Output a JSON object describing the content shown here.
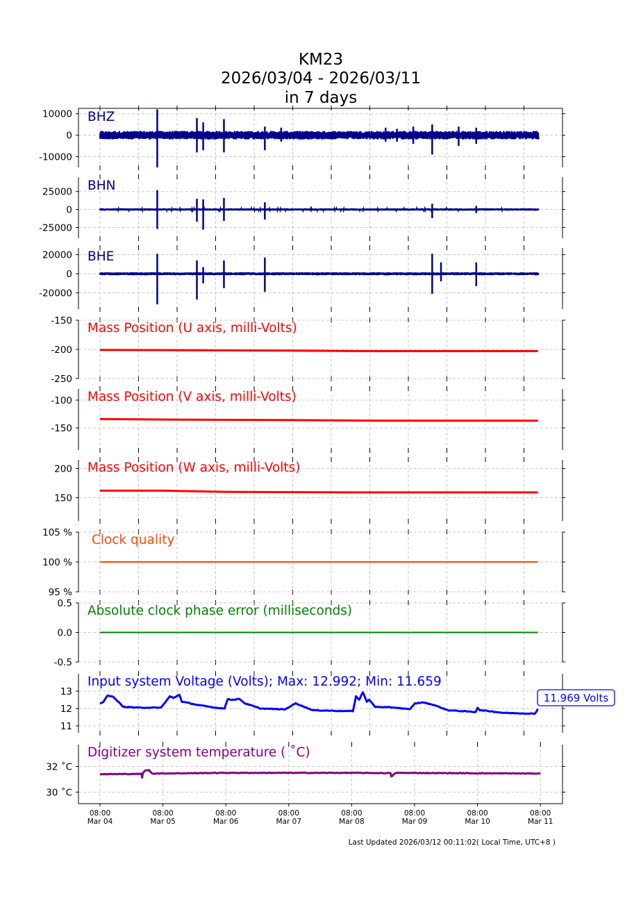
{
  "title": {
    "line1": "KM23",
    "line2": "2026/03/04 - 2026/03/11",
    "line3": "in 7 days"
  },
  "footer": "Last Updated 2026/03/12 00:11:02( Local Time, UTC+8 )",
  "colors": {
    "seismic": "#00008b",
    "mass": "#ff0000",
    "clock": "#ff4500",
    "phase": "#008000",
    "voltage": "#0000ff",
    "temperature": "#800080"
  },
  "chart_data": [
    {
      "type": "line",
      "name": "BHZ",
      "label": "BHZ",
      "ylim": [
        -15000,
        12500
      ],
      "yticks": [
        10000,
        0,
        -10000
      ],
      "ytick_labels": [
        "10000",
        "0",
        "-10000"
      ],
      "noise": 2000,
      "spikes_t_days": [
        [
          0.91,
          12000,
          -15000
        ],
        [
          1.54,
          8000,
          -8000
        ],
        [
          1.64,
          6000,
          -7000
        ],
        [
          1.97,
          7500,
          -8000
        ],
        [
          2.62,
          4000,
          -7000
        ],
        [
          2.88,
          3500,
          -3000
        ],
        [
          4.54,
          3500,
          -3000
        ],
        [
          4.72,
          3000,
          -3000
        ],
        [
          4.98,
          4000,
          -4000
        ],
        [
          5.28,
          5000,
          -9000
        ],
        [
          5.7,
          4000,
          -5000
        ],
        [
          5.98,
          3500,
          -4000
        ]
      ]
    },
    {
      "type": "line",
      "name": "BHN",
      "label": "BHN",
      "ylim": [
        -40000,
        45000
      ],
      "yticks": [
        25000,
        0,
        -25000
      ],
      "ytick_labels": [
        "25000",
        "0",
        "-25000"
      ],
      "noise": 1500,
      "spikes_t_days": [
        [
          0.91,
          27000,
          -27000
        ],
        [
          1.54,
          15000,
          -17000
        ],
        [
          1.64,
          14000,
          -28000
        ],
        [
          1.97,
          16000,
          -16000
        ],
        [
          2.62,
          10000,
          -14000
        ],
        [
          5.28,
          8000,
          -12000
        ],
        [
          5.98,
          5000,
          -5000
        ]
      ]
    },
    {
      "type": "line",
      "name": "BHE",
      "label": "BHE",
      "ylim": [
        -37000,
        27000
      ],
      "yticks": [
        20000,
        0,
        -20000
      ],
      "ytick_labels": [
        "20000",
        "0",
        "-20000"
      ],
      "noise": 1500,
      "spikes_t_days": [
        [
          0.91,
          21000,
          -32000
        ],
        [
          1.54,
          14000,
          -27000
        ],
        [
          1.64,
          7000,
          -10000
        ],
        [
          1.97,
          14000,
          -15000
        ],
        [
          2.62,
          17000,
          -19000
        ],
        [
          5.28,
          21000,
          -21000
        ],
        [
          5.42,
          12000,
          -8000
        ],
        [
          5.98,
          12000,
          -13000
        ]
      ]
    },
    {
      "type": "line",
      "name": "mass-u",
      "label": "Mass Position (U axis, milli-Volts)",
      "ylim": [
        -250,
        -150
      ],
      "yticks": [
        -150,
        -200,
        -250
      ],
      "ytick_labels": [
        "-150",
        "-200",
        "-250"
      ],
      "points": [
        [
          0,
          -201
        ],
        [
          3,
          -202
        ],
        [
          4.3,
          -203
        ],
        [
          6.96,
          -203
        ]
      ]
    },
    {
      "type": "line",
      "name": "mass-v",
      "label": "Mass Position (V axis, milli-Volts)",
      "ylim": [
        -190,
        -80
      ],
      "yticks": [
        -100,
        -150
      ],
      "ytick_labels": [
        "-100",
        "-150"
      ],
      "points": [
        [
          0,
          -134
        ],
        [
          1,
          -135
        ],
        [
          3,
          -136
        ],
        [
          4.5,
          -137
        ],
        [
          6.96,
          -137
        ]
      ]
    },
    {
      "type": "line",
      "name": "mass-w",
      "label": "Mass Position (W axis, milli-Volts)",
      "ylim": [
        110,
        215
      ],
      "yticks": [
        200,
        150
      ],
      "ytick_labels": [
        "200",
        "150"
      ],
      "points": [
        [
          0,
          162
        ],
        [
          1,
          162
        ],
        [
          2,
          160
        ],
        [
          4,
          159
        ],
        [
          6.96,
          159
        ]
      ]
    },
    {
      "type": "line",
      "name": "clock-quality",
      "label": "Clock quality",
      "ylim": [
        95,
        105
      ],
      "yticks": [
        105,
        100,
        95
      ],
      "ytick_labels": [
        "105 %",
        "100 %",
        "95 %"
      ],
      "points": [
        [
          0,
          100
        ],
        [
          6.96,
          100
        ]
      ]
    },
    {
      "type": "line",
      "name": "clock-phase-error",
      "label": "Absolute clock phase error (milliseconds)",
      "ylim": [
        -0.5,
        0.5
      ],
      "yticks": [
        0.5,
        0.0,
        -0.5
      ],
      "ytick_labels": [
        "0.5",
        "0.0",
        "-0.5"
      ],
      "points": [
        [
          0,
          0
        ],
        [
          6.96,
          0
        ]
      ]
    },
    {
      "type": "line",
      "name": "voltage",
      "label": "Input system Voltage (Volts);    Max: 12.992; Min: 11.659",
      "annotation": "11.969 Volts",
      "ylim": [
        10.6,
        14
      ],
      "yticks": [
        13,
        12,
        11
      ],
      "ytick_labels": [
        "13",
        "12",
        "11"
      ],
      "points": [
        [
          0,
          12.3
        ],
        [
          0.05,
          12.35
        ],
        [
          0.12,
          12.75
        ],
        [
          0.2,
          12.7
        ],
        [
          0.37,
          12.1
        ],
        [
          0.6,
          12.05
        ],
        [
          0.97,
          12.05
        ],
        [
          1.11,
          12.7
        ],
        [
          1.17,
          12.6
        ],
        [
          1.26,
          12.8
        ],
        [
          1.3,
          12.4
        ],
        [
          1.56,
          12.2
        ],
        [
          1.83,
          12.05
        ],
        [
          1.98,
          12.0
        ],
        [
          2.03,
          12.55
        ],
        [
          2.1,
          12.5
        ],
        [
          2.22,
          12.55
        ],
        [
          2.3,
          12.3
        ],
        [
          2.55,
          12.0
        ],
        [
          2.94,
          11.95
        ],
        [
          3.11,
          12.3
        ],
        [
          3.38,
          11.9
        ],
        [
          3.93,
          11.85
        ],
        [
          4.02,
          11.85
        ],
        [
          4.07,
          12.7
        ],
        [
          4.12,
          12.5
        ],
        [
          4.18,
          12.95
        ],
        [
          4.24,
          12.4
        ],
        [
          4.28,
          12.5
        ],
        [
          4.37,
          12.1
        ],
        [
          4.7,
          12.05
        ],
        [
          4.92,
          11.95
        ],
        [
          5.01,
          12.3
        ],
        [
          5.14,
          12.35
        ],
        [
          5.31,
          12.2
        ],
        [
          5.53,
          11.9
        ],
        [
          5.97,
          11.8
        ],
        [
          6.0,
          12.05
        ],
        [
          6.04,
          11.9
        ],
        [
          6.19,
          11.85
        ],
        [
          6.41,
          11.75
        ],
        [
          6.91,
          11.7
        ],
        [
          6.96,
          11.97
        ]
      ]
    },
    {
      "type": "line",
      "name": "temperature",
      "label": "Digitizer system temperature ( $^\\circ$C)",
      "label_display": "Digitizer system temperature ( ˚C)",
      "ylim": [
        29.1,
        33.7
      ],
      "yticks": [
        32,
        30
      ],
      "ytick_labels": [
        "32 ˚C",
        "30 ˚C"
      ],
      "points": [
        [
          0,
          31.4
        ],
        [
          0.66,
          31.42
        ],
        [
          0.67,
          31.15
        ],
        [
          0.68,
          31.45
        ],
        [
          0.72,
          31.7
        ],
        [
          0.78,
          31.7
        ],
        [
          0.83,
          31.45
        ],
        [
          2,
          31.5
        ],
        [
          4.0,
          31.5
        ],
        [
          4.62,
          31.48
        ],
        [
          4.63,
          31.2
        ],
        [
          4.7,
          31.5
        ],
        [
          5.5,
          31.48
        ],
        [
          7.0,
          31.45
        ]
      ],
      "xtick_labels": [
        [
          "08:00",
          "Mar 04"
        ],
        [
          "08:00",
          "Mar 05"
        ],
        [
          "08:00",
          "Mar 06"
        ],
        [
          "08:00",
          "Mar 07"
        ],
        [
          "08:00",
          "Mar 08"
        ],
        [
          "08:00",
          "Mar 09"
        ],
        [
          "08:00",
          "Mar 10"
        ],
        [
          "08:00",
          "Mar 11"
        ]
      ]
    }
  ]
}
